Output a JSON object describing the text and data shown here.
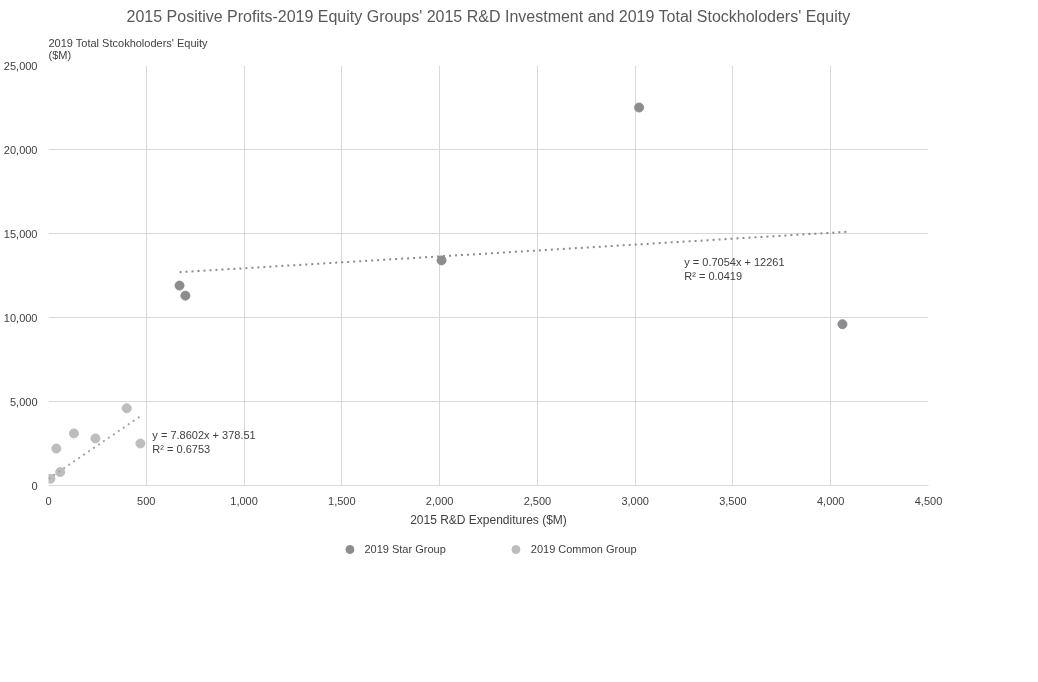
{
  "chart_data": {
    "type": "scatter",
    "title": "2015 Positive Profits-2019 Equity Groups' 2015 R&D Investment and 2019 Total Stockholoders' Equity",
    "xlabel": "2015 R&D Expenditures ($M)",
    "ylabel": "2019 Total Stcokholoders' Equity\n($M)",
    "xlim": [
      0,
      4500
    ],
    "ylim": [
      0,
      25000
    ],
    "xticks": [
      0,
      {
        "value": 500,
        "label": "500"
      },
      {
        "value": 1000,
        "label": "1,000"
      },
      {
        "value": 1500,
        "label": "1,500"
      },
      {
        "value": 2000,
        "label": "2,000"
      },
      {
        "value": 2500,
        "label": "2,500"
      },
      {
        "value": 3000,
        "label": "3,000"
      },
      {
        "value": 3500,
        "label": "3,500"
      },
      {
        "value": 4000,
        "label": "4,000"
      },
      {
        "value": 4500,
        "label": "4,500"
      }
    ],
    "yticks": [
      0,
      {
        "value": 5000,
        "label": "5,000"
      },
      {
        "value": 10000,
        "label": "10,000"
      },
      {
        "value": 15000,
        "label": "15,000"
      },
      {
        "value": 20000,
        "label": "20,000"
      },
      {
        "value": 25000,
        "label": "25,000"
      }
    ],
    "grid": true,
    "legend": "bottom",
    "marker": "circle",
    "series": [
      {
        "name": "2019 Star Group",
        "color": "#8c8c8e",
        "x": [
          670,
          700,
          2010,
          3020,
          4060
        ],
        "values": [
          11900,
          11300,
          13400,
          22500,
          9600
        ]
      },
      {
        "name": "2019 Common Group",
        "color": "#bdbdbd",
        "x": [
          400,
          130,
          240,
          470,
          40,
          60,
          10
        ],
        "values": [
          4600,
          3100,
          2800,
          2500,
          2200,
          800,
          400
        ]
      },
      {
        "type": "line",
        "color": "#8c8c8e",
        "line_style": "dotted",
        "marker": "none",
        "x": [
          670,
          4080
        ],
        "values": [
          12700,
          15100
        ]
      },
      {
        "type": "line",
        "color": "#a6a6a6",
        "line_style": "dotted",
        "marker": "none",
        "x": [
          0,
          480
        ],
        "values": [
          400,
          4200
        ]
      }
    ],
    "annotations": [
      {
        "text": "y = 0.7054x + 12261\nR² = 0.0419",
        "x": 3200,
        "y": 14500
      },
      {
        "text": "y = 7.8602x + 378.51\nR² = 0.6753",
        "x": 480,
        "y": 4200
      }
    ]
  }
}
